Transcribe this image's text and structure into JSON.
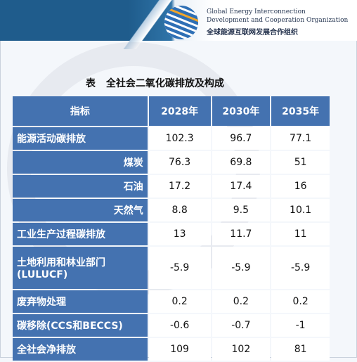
{
  "header": {
    "org_en_line1": "Global Energy Interconnection",
    "org_en_line2": "Development and Cooperation Organization",
    "org_cn": "全球能源互联网发展合作组织"
  },
  "caption": "表 全社会二氧化碳排放及构成",
  "table": {
    "headers": [
      "指标",
      "2028年",
      "2030年",
      "2035年"
    ],
    "rows": [
      {
        "label": "能源活动碳排放",
        "label2": "",
        "values": [
          "102.3",
          "96.7",
          "77.1"
        ]
      },
      {
        "label": "煤炭",
        "label2": "",
        "values": [
          "76.3",
          "69.8",
          "51"
        ]
      },
      {
        "label": "石油",
        "label2": "",
        "values": [
          "17.2",
          "17.4",
          "16"
        ]
      },
      {
        "label": "天然气",
        "label2": "",
        "values": [
          "8.8",
          "9.5",
          "10.1"
        ]
      },
      {
        "label": "工业生产过程碳排放",
        "label2": "",
        "values": [
          "13",
          "11.7",
          "11"
        ]
      },
      {
        "label": "土地利用和林业部门",
        "label2": "(LULUCF)",
        "values": [
          "-5.9",
          "-5.9",
          "-5.9"
        ]
      },
      {
        "label": "废弃物处理",
        "label2": "",
        "values": [
          "0.2",
          "0.2",
          "0.2"
        ]
      },
      {
        "label": "碳移除(CCS和BECCS)",
        "label2": "",
        "values": [
          "-0.6",
          "-0.7",
          "-1"
        ]
      },
      {
        "label": "全社会净排放",
        "label2": "",
        "values": [
          "109",
          "102",
          "81"
        ]
      }
    ]
  },
  "colors": {
    "header_blue": "#4472b0",
    "band_blue": "#1f5c8c"
  }
}
